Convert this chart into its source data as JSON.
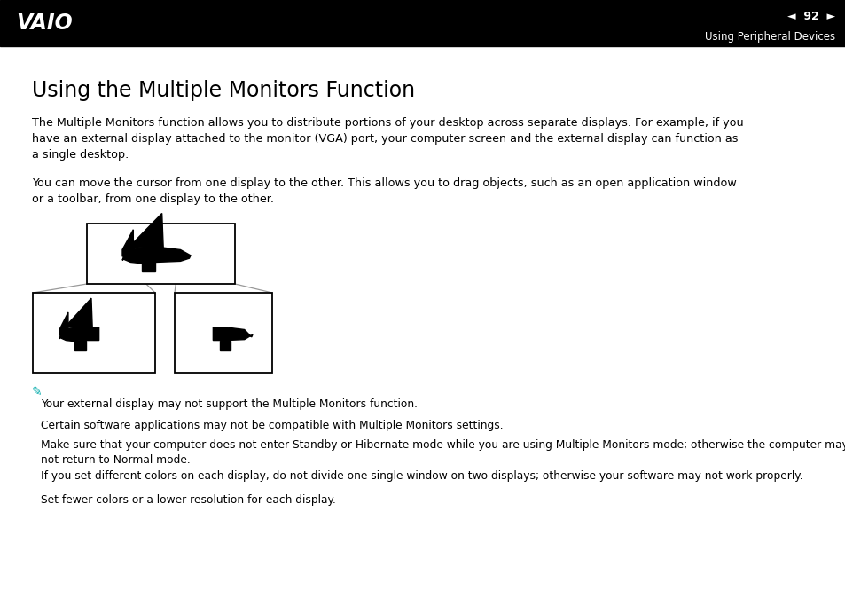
{
  "bg_color": "#ffffff",
  "header_bg": "#000000",
  "page_number": "92",
  "header_right_text": "Using Peripheral Devices",
  "title": "Using the Multiple Monitors Function",
  "title_fontsize": 17,
  "body_text_1": "The Multiple Monitors function allows you to distribute portions of your desktop across separate displays. For example, if you\nhave an external display attached to the monitor (VGA) port, your computer screen and the external display can function as\na single desktop.",
  "body_text_2": "You can move the cursor from one display to the other. This allows you to drag objects, such as an open application window\nor a toolbar, from one display to the other.",
  "note_text_1": "Your external display may not support the Multiple Monitors function.",
  "note_text_2": "Certain software applications may not be compatible with Multiple Monitors settings.",
  "note_text_3": "Make sure that your computer does not enter Standby or Hibernate mode while you are using Multiple Monitors mode; otherwise the computer may\nnot return to Normal mode.",
  "note_text_4": "If you set different colors on each display, do not divide one single window on two displays; otherwise your software may not work properly.",
  "note_text_5": "Set fewer colors or a lower resolution for each display.",
  "body_fontsize": 9.2,
  "note_fontsize": 8.8,
  "text_color": "#000000",
  "note_icon_color": "#00AAAA"
}
